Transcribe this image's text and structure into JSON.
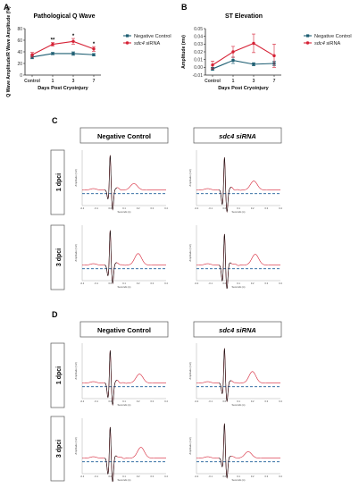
{
  "panels": {
    "A": {
      "letter": "A"
    },
    "B": {
      "letter": "B"
    },
    "C": {
      "letter": "C"
    },
    "D": {
      "letter": "D"
    }
  },
  "colors": {
    "negative_control": "#1f5f73",
    "sdc4_sirna": "#d62236",
    "baseline": "#1f5f9a",
    "trace_black": "#111111"
  },
  "chart_data": [
    {
      "id": "A",
      "type": "line",
      "title": "Pathological Q Wave",
      "xlabel": "Days Post Cryoinjury",
      "ylabel": "Q Wave Amplitude/R Wave Amplitude (%)",
      "categories": [
        "Control",
        "1",
        "3",
        "7"
      ],
      "ylim": [
        0,
        80
      ],
      "yticks": [
        0,
        20,
        40,
        60,
        80
      ],
      "legend_position": "right",
      "grid": false,
      "series": [
        {
          "name": "Negative Control",
          "name_italic_part": "",
          "values": [
            31,
            37,
            37,
            35
          ],
          "errors": [
            3,
            2,
            3,
            2
          ]
        },
        {
          "name": "sdc4 siRNA",
          "name_italic_part": "sdc4",
          "values": [
            35,
            53,
            58,
            45
          ],
          "errors": [
            4,
            3,
            5,
            4
          ]
        }
      ],
      "annotations": [
        {
          "category": "1",
          "text": "**",
          "y": 58
        },
        {
          "category": "3",
          "text": "*",
          "y": 65
        },
        {
          "category": "7",
          "text": "*",
          "y": 51
        }
      ]
    },
    {
      "id": "B",
      "type": "line",
      "title": "ST Elevation",
      "xlabel": "Days Post Cryoinjury",
      "ylabel": "Amplitude (mv)",
      "categories": [
        "Control",
        "1",
        "3",
        "7"
      ],
      "ylim": [
        -0.01,
        0.05
      ],
      "yticks": [
        -0.01,
        0.0,
        0.01,
        0.02,
        0.03,
        0.04,
        0.05
      ],
      "legend_position": "right",
      "grid": false,
      "series": [
        {
          "name": "Negative Control",
          "name_italic_part": "",
          "values": [
            -0.002,
            0.009,
            0.004,
            0.005
          ],
          "errors": [
            0.002,
            0.004,
            0.002,
            0.003
          ]
        },
        {
          "name": "sdc4 siRNA",
          "name_italic_part": "sdc4",
          "values": [
            0.003,
            0.02,
            0.031,
            0.015
          ],
          "errors": [
            0.005,
            0.007,
            0.012,
            0.015
          ]
        }
      ]
    }
  ],
  "ecg_panels": [
    {
      "letter": "C",
      "col_headers": [
        "Negative Control",
        "sdc4 siRNA"
      ],
      "row_labels": [
        "1 dpci",
        "3 dpci"
      ],
      "x_axis_label": "Seconds (s)",
      "y_axis_label": "Amplitude (mV)",
      "x_ticks": [
        "-0.2",
        "-0.1",
        "0.0",
        "0.1",
        "0.2",
        "0.3",
        "0.4"
      ]
    },
    {
      "letter": "D",
      "col_headers": [
        "Negative Control",
        "sdc4 siRNA"
      ],
      "row_labels": [
        "1 dpci",
        "3 dpci"
      ],
      "x_axis_label": "Seconds (s)",
      "y_axis_label": "Amplitude (mV)",
      "x_ticks": [
        "-0.2",
        "-0.1",
        "0.0",
        "0.1",
        "0.2",
        "0.3",
        "0.4"
      ]
    }
  ]
}
